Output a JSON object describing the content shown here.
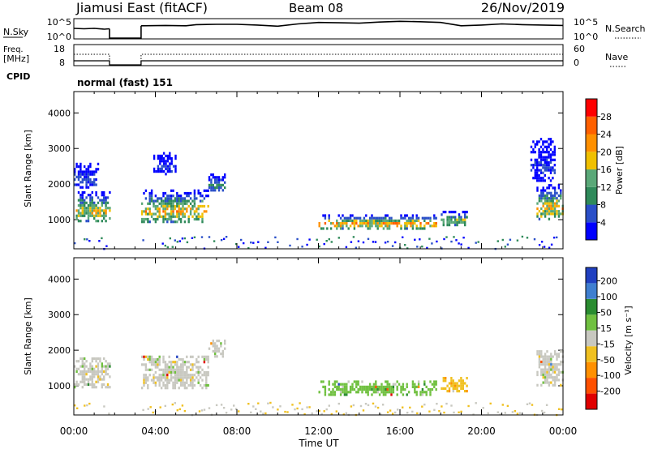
{
  "header": {
    "station": "Jiamusi East (fitACF)",
    "beam": "Beam 08",
    "date": "26/Nov/2019"
  },
  "chart_data": [
    {
      "type": "line",
      "name": "noise-panel",
      "left_label": "N.Sky",
      "right_label": "N.Search",
      "left_ticks": [
        "10^5",
        "10^0"
      ],
      "right_ticks": [
        "10^5",
        "10^0"
      ],
      "gaps_hours": [
        [
          1.75,
          3.3
        ]
      ],
      "noise_sky_log": [
        [
          0.0,
          2.6
        ],
        [
          0.5,
          2.5
        ],
        [
          1.0,
          2.6
        ],
        [
          1.5,
          2.4
        ],
        [
          1.75,
          2.5
        ],
        [
          3.3,
          3.3
        ],
        [
          4.5,
          3.4
        ],
        [
          5.5,
          3.3
        ],
        [
          6.0,
          3.6
        ],
        [
          7.0,
          3.7
        ],
        [
          8.0,
          3.7
        ],
        [
          9.0,
          3.5
        ],
        [
          10.0,
          3.2
        ],
        [
          11.0,
          3.8
        ],
        [
          12.0,
          4.2
        ],
        [
          13.0,
          4.1
        ],
        [
          14.0,
          4.0
        ],
        [
          15.0,
          4.3
        ],
        [
          16.0,
          4.5
        ],
        [
          17.0,
          4.4
        ],
        [
          18.0,
          4.2
        ],
        [
          19.0,
          3.3
        ],
        [
          20.0,
          3.5
        ],
        [
          21.0,
          3.8
        ],
        [
          22.0,
          3.6
        ],
        [
          23.0,
          3.5
        ],
        [
          24.0,
          3.4
        ]
      ],
      "ylim_log": [
        0,
        5
      ]
    },
    {
      "type": "line",
      "name": "frequency-panel",
      "left_label": "Freq.",
      "left_unit": "[MHz]",
      "right_label": "Nave",
      "left_ticks": [
        "18",
        "8"
      ],
      "right_ticks": [
        "60",
        "0"
      ],
      "cpid_label": "CPID",
      "cpid_text": "normal (fast) 151",
      "gaps_hours": [
        [
          1.75,
          3.3
        ]
      ],
      "frequency_mhz": 10,
      "nave": 38
    },
    {
      "type": "heatmap",
      "name": "power",
      "ylabel": "Slant Range [km]",
      "yticks": [
        "1000",
        "2000",
        "3000",
        "4000"
      ],
      "ylim": [
        180,
        4600
      ],
      "xlim_hours": [
        0,
        24
      ],
      "colorbar_label": "Power [dB]",
      "colorbar_ticks": [
        "4",
        "8",
        "12",
        "16",
        "20",
        "24",
        "28"
      ],
      "colorbar_range": [
        0,
        32
      ],
      "colors": [
        "#0000ff",
        "#2a4fc8",
        "#2f8a5a",
        "#5aa878",
        "#f0c000",
        "#ff9000",
        "#ff6000",
        "#ff0000"
      ],
      "echo_regions": [
        {
          "t0": 0.0,
          "t1": 1.75,
          "r0": 950,
          "r1": 1800,
          "peak": 20
        },
        {
          "t0": 0.0,
          "t1": 1.2,
          "r0": 1900,
          "r1": 2600,
          "peak": 6
        },
        {
          "t0": 3.3,
          "t1": 6.6,
          "r0": 950,
          "r1": 1850,
          "peak": 22
        },
        {
          "t0": 3.8,
          "t1": 5.0,
          "r0": 2300,
          "r1": 2900,
          "peak": 5
        },
        {
          "t0": 6.6,
          "t1": 7.4,
          "r0": 1800,
          "r1": 2300,
          "peak": 10
        },
        {
          "t0": 12.0,
          "t1": 17.8,
          "r0": 780,
          "r1": 1150,
          "peak": 25
        },
        {
          "t0": 18.0,
          "t1": 19.3,
          "r0": 850,
          "r1": 1250,
          "peak": 18
        },
        {
          "t0": 22.7,
          "t1": 24.0,
          "r0": 1000,
          "r1": 2000,
          "peak": 22
        },
        {
          "t0": 22.4,
          "t1": 23.6,
          "r0": 2100,
          "r1": 3300,
          "peak": 5
        }
      ]
    },
    {
      "type": "heatmap",
      "name": "velocity",
      "ylabel": "Slant Range [km]",
      "yticks": [
        "1000",
        "2000",
        "3000",
        "4000"
      ],
      "ylim": [
        180,
        4600
      ],
      "xlim_hours": [
        0,
        24
      ],
      "xticks": [
        "00:00",
        "04:00",
        "08:00",
        "12:00",
        "16:00",
        "20:00",
        "00:00"
      ],
      "xlabel": "Time UT",
      "colorbar_label": "Velocity [m s⁻¹]",
      "colorbar_ticks": [
        "200",
        "100",
        "50",
        "15",
        "-15",
        "-50",
        "-100",
        "-200"
      ],
      "colors": [
        "#2040c0",
        "#3f7fd0",
        "#2a8c30",
        "#70c040",
        "#c8c8c0",
        "#f0c020",
        "#ff9000",
        "#ff5000",
        "#e00000"
      ],
      "echo_regions": [
        {
          "t0": 0.0,
          "t1": 1.75,
          "r0": 950,
          "r1": 1800,
          "v": 0
        },
        {
          "t0": 3.3,
          "t1": 6.6,
          "r0": 950,
          "r1": 1850,
          "v": 0
        },
        {
          "t0": 6.6,
          "t1": 7.4,
          "r0": 1800,
          "r1": 2300,
          "v": 0
        },
        {
          "t0": 12.0,
          "t1": 17.8,
          "r0": 780,
          "r1": 1150,
          "v": 40
        },
        {
          "t0": 18.0,
          "t1": 19.3,
          "r0": 850,
          "r1": 1250,
          "v": -40
        },
        {
          "t0": 22.7,
          "t1": 24.0,
          "r0": 1000,
          "r1": 2000,
          "v": 0
        }
      ]
    }
  ]
}
